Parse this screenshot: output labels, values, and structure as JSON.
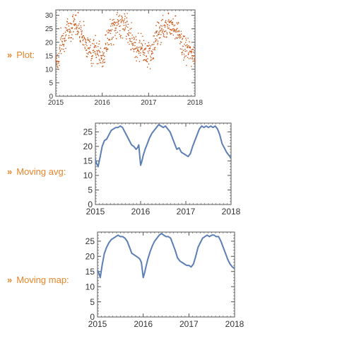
{
  "rows": [
    {
      "marker": "»",
      "label": "Plot:"
    },
    {
      "marker": "»",
      "label": "Moving avg:"
    },
    {
      "marker": "»",
      "label": "Moving map:"
    }
  ],
  "colors": {
    "label": "#e8852a",
    "scatter": "#c8591a",
    "line": "#5b7fb5",
    "frame": "#555555"
  },
  "chart_data": [
    {
      "type": "scatter",
      "title": "",
      "xlabel": "",
      "ylabel": "",
      "xlim": [
        2015.0,
        2018.0
      ],
      "ylim": [
        0,
        32
      ],
      "xticks": [
        2015,
        2016,
        2017,
        2018
      ],
      "yticks": [
        0,
        5,
        10,
        15,
        20,
        25,
        30
      ],
      "grid": false,
      "series": [
        {
          "x": [
            2015.0,
            2015.05,
            2015.1,
            2015.15,
            2015.2,
            2015.25,
            2015.3,
            2015.35,
            2015.4,
            2015.45,
            2015.5,
            2015.55,
            2015.6,
            2015.65,
            2015.7,
            2015.75,
            2015.8,
            2015.85,
            2015.9,
            2015.95,
            2016.0,
            2016.05,
            2016.1,
            2016.15,
            2016.2,
            2016.25,
            2016.3,
            2016.35,
            2016.4,
            2016.45,
            2016.5,
            2016.55,
            2016.6,
            2016.65,
            2016.7,
            2016.75,
            2016.8,
            2016.85,
            2016.9,
            2016.95,
            2017.0,
            2017.05,
            2017.1,
            2017.15,
            2017.2,
            2017.25,
            2017.3,
            2017.35,
            2017.4,
            2017.45,
            2017.5,
            2017.55,
            2017.6,
            2017.65,
            2017.7,
            2017.75,
            2017.8,
            2017.85,
            2017.9,
            2017.95,
            2018.0
          ],
          "y": [
            15,
            12,
            19,
            21,
            23,
            24,
            25,
            26,
            27,
            27,
            26,
            24,
            22,
            20,
            18,
            17,
            16,
            18,
            17,
            15,
            13,
            17,
            20,
            22,
            24,
            25,
            26,
            27,
            27,
            27,
            26,
            25,
            23,
            21,
            19,
            18,
            18,
            19,
            17,
            16,
            16,
            15,
            18,
            21,
            23,
            24,
            25,
            26,
            26,
            27,
            27,
            26,
            25,
            23,
            20,
            18,
            18,
            17,
            16,
            15,
            15
          ],
          "y_spread": 4
        }
      ]
    },
    {
      "type": "line",
      "title": "",
      "xlabel": "",
      "ylabel": "",
      "xlim": [
        2015.0,
        2018.0
      ],
      "ylim": [
        0,
        28
      ],
      "xticks": [
        2015,
        2016,
        2017,
        2018
      ],
      "yticks": [
        0,
        5,
        10,
        15,
        20,
        25
      ],
      "grid": false,
      "series": [
        {
          "x": [
            2015.0,
            2015.03,
            2015.06,
            2015.1,
            2015.15,
            2015.2,
            2015.25,
            2015.3,
            2015.35,
            2015.4,
            2015.45,
            2015.5,
            2015.55,
            2015.6,
            2015.65,
            2015.7,
            2015.75,
            2015.8,
            2015.85,
            2015.9,
            2015.93,
            2015.96,
            2016.0,
            2016.03,
            2016.06,
            2016.1,
            2016.15,
            2016.2,
            2016.25,
            2016.3,
            2016.35,
            2016.4,
            2016.45,
            2016.5,
            2016.55,
            2016.6,
            2016.65,
            2016.7,
            2016.75,
            2016.8,
            2016.85,
            2016.9,
            2016.95,
            2017.0,
            2017.05,
            2017.1,
            2017.15,
            2017.2,
            2017.25,
            2017.3,
            2017.35,
            2017.4,
            2017.45,
            2017.5,
            2017.55,
            2017.6,
            2017.65,
            2017.7,
            2017.75,
            2017.8,
            2017.85,
            2017.9,
            2017.95,
            2018.0
          ],
          "y": [
            15.5,
            14,
            13,
            16,
            20,
            22,
            22.5,
            24,
            25.5,
            26,
            26.5,
            26.5,
            27,
            26.5,
            25,
            23.5,
            22,
            20.5,
            20,
            19,
            19.5,
            20.5,
            13.5,
            15,
            17,
            19,
            21,
            23,
            24.5,
            25.5,
            26.5,
            27.5,
            27,
            26.5,
            27,
            26,
            25,
            23,
            21,
            19,
            19.5,
            18,
            17.5,
            17,
            16.5,
            17.5,
            20,
            22,
            24,
            26,
            27,
            26.5,
            27,
            26.5,
            27,
            26.5,
            27,
            26,
            24,
            21,
            19.5,
            18,
            17,
            16
          ]
        }
      ]
    },
    {
      "type": "line",
      "title": "",
      "xlabel": "",
      "ylabel": "",
      "xlim": [
        2015.0,
        2018.0
      ],
      "ylim": [
        0,
        28
      ],
      "xticks": [
        2015,
        2016,
        2017,
        2018
      ],
      "yticks": [
        0,
        5,
        10,
        15,
        20,
        25
      ],
      "grid": false,
      "series": [
        {
          "x": [
            2015.0,
            2015.03,
            2015.06,
            2015.1,
            2015.15,
            2015.2,
            2015.25,
            2015.3,
            2015.35,
            2015.4,
            2015.45,
            2015.5,
            2015.55,
            2015.6,
            2015.65,
            2015.7,
            2015.75,
            2015.8,
            2015.85,
            2015.9,
            2015.93,
            2015.96,
            2016.0,
            2016.03,
            2016.06,
            2016.1,
            2016.15,
            2016.2,
            2016.25,
            2016.3,
            2016.35,
            2016.4,
            2016.45,
            2016.5,
            2016.55,
            2016.6,
            2016.65,
            2016.7,
            2016.75,
            2016.8,
            2016.85,
            2016.9,
            2016.95,
            2017.0,
            2017.05,
            2017.1,
            2017.15,
            2017.2,
            2017.25,
            2017.3,
            2017.35,
            2017.4,
            2017.45,
            2017.5,
            2017.55,
            2017.6,
            2017.65,
            2017.7,
            2017.75,
            2017.8,
            2017.85,
            2017.9,
            2017.95,
            2018.0
          ],
          "y": [
            15.5,
            14.5,
            13,
            17,
            21,
            23,
            24.5,
            25.5,
            26,
            26.5,
            27,
            26.5,
            26.5,
            26,
            25,
            23,
            21,
            20.5,
            20,
            19.5,
            19,
            18,
            13,
            14.5,
            16.5,
            19,
            21.5,
            23.5,
            25,
            26,
            27,
            27.5,
            27,
            26.5,
            26.5,
            26,
            24,
            22,
            19.5,
            18.5,
            18,
            17.5,
            17,
            17,
            16.5,
            17.5,
            20,
            23,
            24.5,
            26,
            26.5,
            27,
            26.5,
            27,
            27,
            26.5,
            26.5,
            25,
            23,
            21,
            19,
            17.5,
            16.5,
            16
          ]
        }
      ]
    }
  ]
}
